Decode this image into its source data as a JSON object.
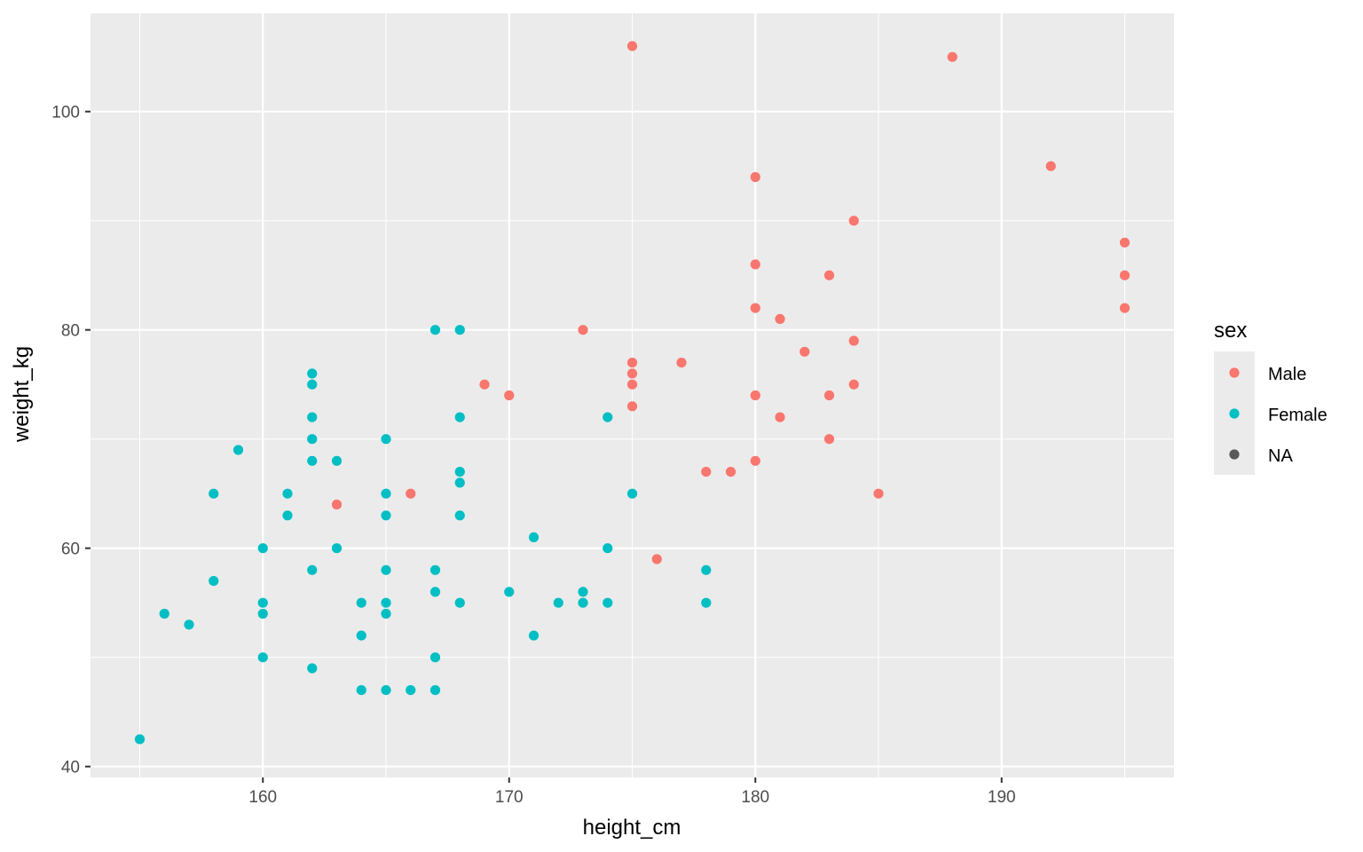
{
  "chart_data": {
    "type": "scatter",
    "xlabel": "height_cm",
    "ylabel": "weight_kg",
    "xlim": [
      153.0,
      197.0
    ],
    "ylim": [
      39.0,
      109.0
    ],
    "x_ticks": [
      160,
      170,
      180,
      190
    ],
    "y_ticks": [
      40,
      60,
      80,
      100
    ],
    "x_tick_labels": [
      "160",
      "170",
      "180",
      "190"
    ],
    "y_tick_labels": [
      "40",
      "60",
      "80",
      "100"
    ],
    "grid": true,
    "legend": {
      "title": "sex",
      "placement": "right",
      "entries": [
        {
          "label": "Male",
          "color": "#F8766D"
        },
        {
          "label": "Female",
          "color": "#00BFC4"
        },
        {
          "label": "NA",
          "color": "#595959"
        }
      ]
    },
    "series": [
      {
        "name": "Male",
        "color": "#F8766D",
        "points": [
          [
            175,
            106
          ],
          [
            188,
            105
          ],
          [
            192,
            95
          ],
          [
            180,
            94
          ],
          [
            184,
            90
          ],
          [
            195,
            88
          ],
          [
            180,
            86
          ],
          [
            183,
            85
          ],
          [
            195,
            85
          ],
          [
            180,
            82
          ],
          [
            195,
            82
          ],
          [
            181,
            81
          ],
          [
            173,
            80
          ],
          [
            184,
            79
          ],
          [
            182,
            78
          ],
          [
            175,
            77
          ],
          [
            177,
            77
          ],
          [
            175,
            76
          ],
          [
            169,
            75
          ],
          [
            175,
            75
          ],
          [
            184,
            75
          ],
          [
            170,
            74
          ],
          [
            180,
            74
          ],
          [
            183,
            74
          ],
          [
            175,
            73
          ],
          [
            181,
            72
          ],
          [
            183,
            70
          ],
          [
            180,
            68
          ],
          [
            178,
            67
          ],
          [
            179,
            67
          ],
          [
            166,
            65
          ],
          [
            185,
            65
          ],
          [
            163,
            64
          ],
          [
            176,
            59
          ]
        ]
      },
      {
        "name": "Female",
        "color": "#00BFC4",
        "points": [
          [
            167,
            80
          ],
          [
            168,
            80
          ],
          [
            162,
            76
          ],
          [
            162,
            75
          ],
          [
            162,
            72
          ],
          [
            168,
            72
          ],
          [
            174,
            72
          ],
          [
            162,
            70
          ],
          [
            165,
            70
          ],
          [
            159,
            69
          ],
          [
            162,
            68
          ],
          [
            163,
            68
          ],
          [
            168,
            67
          ],
          [
            168,
            66
          ],
          [
            158,
            65
          ],
          [
            161,
            65
          ],
          [
            165,
            65
          ],
          [
            175,
            65
          ],
          [
            161,
            63
          ],
          [
            165,
            63
          ],
          [
            168,
            63
          ],
          [
            171,
            61
          ],
          [
            160,
            60
          ],
          [
            163,
            60
          ],
          [
            174,
            60
          ],
          [
            162,
            58
          ],
          [
            165,
            58
          ],
          [
            167,
            58
          ],
          [
            178,
            58
          ],
          [
            158,
            57
          ],
          [
            167,
            56
          ],
          [
            170,
            56
          ],
          [
            173,
            56
          ],
          [
            160,
            55
          ],
          [
            164,
            55
          ],
          [
            165,
            55
          ],
          [
            168,
            55
          ],
          [
            172,
            55
          ],
          [
            173,
            55
          ],
          [
            174,
            55
          ],
          [
            178,
            55
          ],
          [
            156,
            54
          ],
          [
            160,
            54
          ],
          [
            165,
            54
          ],
          [
            157,
            53
          ],
          [
            164,
            52
          ],
          [
            171,
            52
          ],
          [
            160,
            50
          ],
          [
            167,
            50
          ],
          [
            162,
            49
          ],
          [
            164,
            47
          ],
          [
            165,
            47
          ],
          [
            166,
            47
          ],
          [
            167,
            47
          ],
          [
            155,
            42.5
          ]
        ]
      }
    ]
  }
}
